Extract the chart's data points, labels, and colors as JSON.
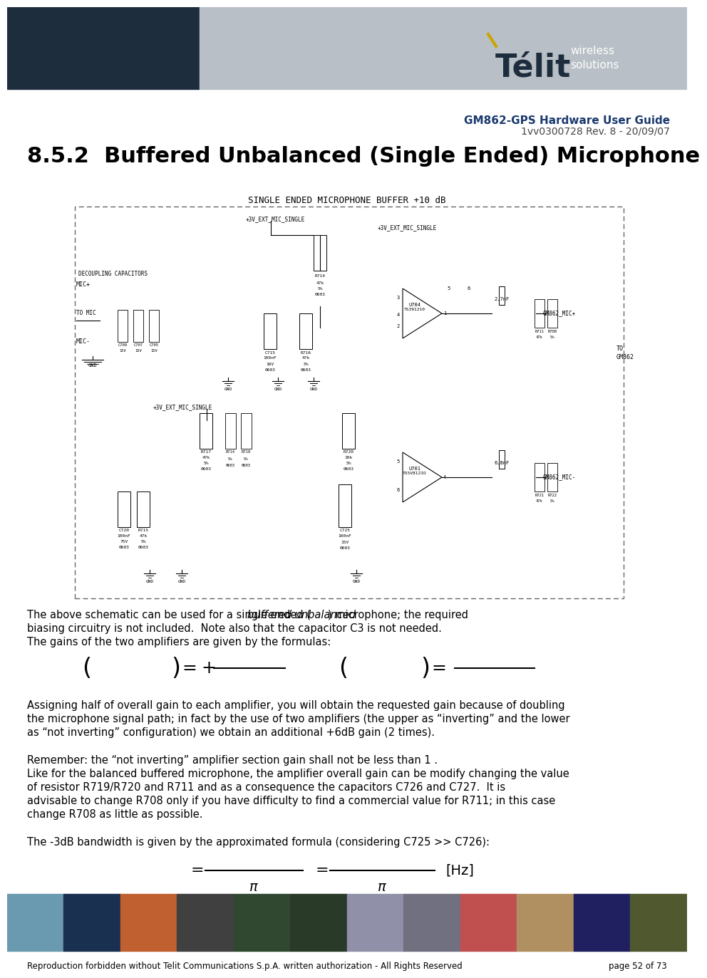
{
  "bg_color": "#ffffff",
  "header_left_color": "#1e2d3d",
  "header_right_color": "#b8bfc6",
  "title_bold": "GM862-GPS Hardware User Guide",
  "title_rev": "1vv0300728 Rev. 8 - 20/09/07",
  "section_title": "8.5.2  Buffered Unbalanced (Single Ended) Microphone",
  "schematic_title": "SINGLE ENDED MICROPHONE BUFFER +10 dB",
  "footer_text": "Reproduction forbidden without Telit Communications S.p.A. written authorization - All Rights Reserved",
  "footer_page": "page 52 of 73",
  "telit_color": "#1e2d3d",
  "telit_accent": "#c8a800",
  "title_color": "#1a3a6e",
  "photo_colors": [
    "#6a9ab0",
    "#1a3050",
    "#c06030",
    "#404040",
    "#304830",
    "#2a3a28",
    "#9090a8",
    "#707080",
    "#c05050",
    "#b09060",
    "#202060",
    "#505830"
  ]
}
